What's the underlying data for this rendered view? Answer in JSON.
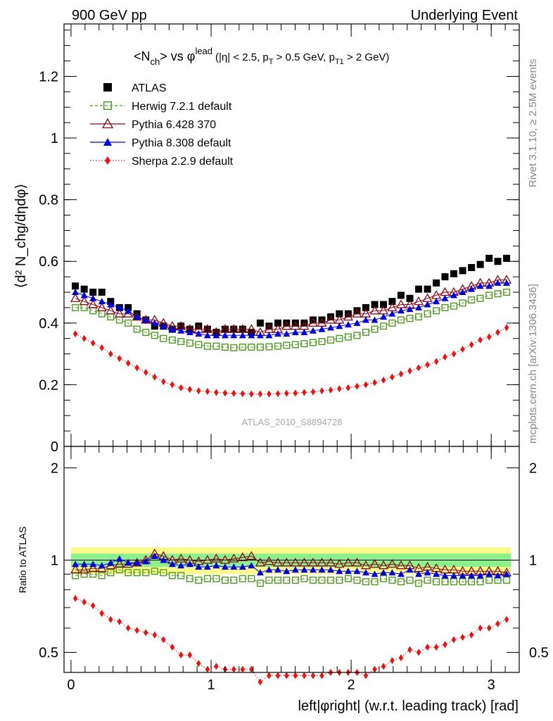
{
  "header": {
    "left_text": "900 GeV pp",
    "right_text": "Underlying Event"
  },
  "side_labels": {
    "rivet": "Rivet 3.1.10, ≥ 2.5M events",
    "mcplots": "mcplots.cern.ch [arXiv:1306.3436]"
  },
  "plot_title": {
    "main": "<N",
    "main_sub": "ch",
    "vs": "> vs φ",
    "vs_sup": "lead",
    "cuts": "(|η| < 2.5, p",
    "cuts_sub1": "T",
    "cuts_mid": " > 0.5 GeV, p",
    "cuts_sub2": "T1",
    "cuts_end": " > 2 GeV)"
  },
  "watermark": "ATLAS_2010_S8894728",
  "axes": {
    "ylabel_main": "⟨d² N_chg/dηdφ⟩",
    "ylabel_ratio": "Ratio to ATLAS",
    "xlabel": "left|φright| (w.r.t. leading track) [rad]",
    "main_yticks": [
      "0",
      "0.2",
      "0.4",
      "0.6",
      "0.8",
      "1",
      "1.2"
    ],
    "ratio_yticks": [
      "0.5",
      "1",
      "2"
    ],
    "xticks": [
      "0",
      "1",
      "2",
      "3"
    ]
  },
  "legend": [
    {
      "label": "ATLAS",
      "color": "#000000",
      "marker": "square-filled",
      "line": "none"
    },
    {
      "label": "Herwig 7.2.1 default",
      "color": "#4d9a1e",
      "marker": "square-open",
      "line": "dashed"
    },
    {
      "label": "Pythia 6.428 370",
      "color": "#8b0a1a",
      "marker": "triangle-open",
      "line": "solid"
    },
    {
      "label": "Pythia 8.308 default",
      "color": "#0000dd",
      "marker": "triangle-filled",
      "line": "solid"
    },
    {
      "label": "Sherpa 2.2.9 default",
      "color": "#ee1111",
      "marker": "diamond-filled",
      "line": "dotted"
    }
  ],
  "chart_data": [
    {
      "type": "scatter",
      "panel": "main",
      "xlim": [
        -0.05,
        3.2
      ],
      "ylim": [
        0,
        1.37
      ],
      "x": [
        0.031,
        0.094,
        0.157,
        0.22,
        0.283,
        0.346,
        0.408,
        0.471,
        0.534,
        0.597,
        0.66,
        0.723,
        0.785,
        0.848,
        0.911,
        0.974,
        1.037,
        1.1,
        1.162,
        1.225,
        1.288,
        1.351,
        1.414,
        1.477,
        1.539,
        1.602,
        1.665,
        1.728,
        1.791,
        1.854,
        1.916,
        1.979,
        2.042,
        2.105,
        2.168,
        2.231,
        2.293,
        2.356,
        2.419,
        2.482,
        2.545,
        2.608,
        2.67,
        2.733,
        2.796,
        2.859,
        2.922,
        2.985,
        3.047,
        3.11
      ],
      "series": [
        {
          "name": "ATLAS",
          "values": [
            0.52,
            0.51,
            0.5,
            0.5,
            0.47,
            0.45,
            0.45,
            0.43,
            0.41,
            0.39,
            0.39,
            0.38,
            0.39,
            0.38,
            0.39,
            0.38,
            0.37,
            0.38,
            0.38,
            0.38,
            0.37,
            0.4,
            0.39,
            0.4,
            0.4,
            0.4,
            0.4,
            0.41,
            0.41,
            0.42,
            0.43,
            0.43,
            0.44,
            0.45,
            0.46,
            0.46,
            0.47,
            0.49,
            0.48,
            0.51,
            0.51,
            0.53,
            0.55,
            0.56,
            0.57,
            0.58,
            0.59,
            0.61,
            0.6,
            0.61
          ]
        },
        {
          "name": "Herwig 7.2.1 default",
          "values": [
            0.45,
            0.45,
            0.44,
            0.43,
            0.42,
            0.41,
            0.4,
            0.38,
            0.37,
            0.36,
            0.35,
            0.345,
            0.34,
            0.335,
            0.33,
            0.325,
            0.325,
            0.322,
            0.32,
            0.322,
            0.322,
            0.322,
            0.323,
            0.325,
            0.328,
            0.33,
            0.333,
            0.337,
            0.34,
            0.345,
            0.35,
            0.355,
            0.36,
            0.37,
            0.38,
            0.39,
            0.4,
            0.41,
            0.415,
            0.42,
            0.43,
            0.44,
            0.45,
            0.455,
            0.465,
            0.475,
            0.48,
            0.49,
            0.495,
            0.5
          ]
        },
        {
          "name": "Pythia 6.428 370",
          "values": [
            0.48,
            0.47,
            0.46,
            0.45,
            0.44,
            0.43,
            0.43,
            0.42,
            0.41,
            0.41,
            0.4,
            0.39,
            0.39,
            0.38,
            0.38,
            0.38,
            0.37,
            0.38,
            0.38,
            0.38,
            0.38,
            0.37,
            0.38,
            0.38,
            0.39,
            0.39,
            0.39,
            0.4,
            0.4,
            0.41,
            0.41,
            0.42,
            0.43,
            0.43,
            0.44,
            0.44,
            0.45,
            0.46,
            0.46,
            0.47,
            0.48,
            0.49,
            0.5,
            0.5,
            0.51,
            0.52,
            0.53,
            0.53,
            0.54,
            0.54
          ]
        },
        {
          "name": "Pythia 8.308 default",
          "values": [
            0.5,
            0.49,
            0.48,
            0.47,
            0.46,
            0.45,
            0.44,
            0.42,
            0.41,
            0.4,
            0.39,
            0.38,
            0.375,
            0.37,
            0.365,
            0.36,
            0.36,
            0.36,
            0.36,
            0.36,
            0.36,
            0.36,
            0.36,
            0.365,
            0.365,
            0.37,
            0.37,
            0.375,
            0.38,
            0.385,
            0.39,
            0.395,
            0.4,
            0.41,
            0.41,
            0.42,
            0.43,
            0.44,
            0.445,
            0.45,
            0.46,
            0.47,
            0.48,
            0.49,
            0.5,
            0.51,
            0.52,
            0.52,
            0.53,
            0.53
          ]
        },
        {
          "name": "Sherpa 2.2.9 default",
          "values": [
            0.365,
            0.35,
            0.335,
            0.32,
            0.3,
            0.285,
            0.27,
            0.255,
            0.24,
            0.225,
            0.21,
            0.2,
            0.19,
            0.185,
            0.18,
            0.178,
            0.175,
            0.173,
            0.172,
            0.171,
            0.17,
            0.17,
            0.17,
            0.171,
            0.172,
            0.173,
            0.175,
            0.177,
            0.18,
            0.183,
            0.187,
            0.19,
            0.195,
            0.2,
            0.207,
            0.215,
            0.225,
            0.235,
            0.245,
            0.255,
            0.265,
            0.275,
            0.29,
            0.3,
            0.315,
            0.33,
            0.345,
            0.355,
            0.37,
            0.385
          ]
        }
      ]
    },
    {
      "type": "scatter",
      "panel": "ratio",
      "ylabel": "Ratio to ATLAS",
      "ylim": [
        0.43,
        2.35
      ],
      "log_scale_y": true,
      "band_inner": [
        0.95,
        1.05
      ],
      "band_outer": [
        0.9,
        1.1
      ],
      "x": [
        0.031,
        0.094,
        0.157,
        0.22,
        0.283,
        0.346,
        0.408,
        0.471,
        0.534,
        0.597,
        0.66,
        0.723,
        0.785,
        0.848,
        0.911,
        0.974,
        1.037,
        1.1,
        1.162,
        1.225,
        1.288,
        1.351,
        1.414,
        1.477,
        1.539,
        1.602,
        1.665,
        1.728,
        1.791,
        1.854,
        1.916,
        1.979,
        2.042,
        2.105,
        2.168,
        2.231,
        2.293,
        2.356,
        2.419,
        2.482,
        2.545,
        2.608,
        2.67,
        2.733,
        2.796,
        2.859,
        2.922,
        2.985,
        3.047,
        3.11
      ],
      "series": [
        {
          "name": "Herwig 7.2.1 default",
          "values": [
            0.89,
            0.9,
            0.9,
            0.89,
            0.91,
            0.93,
            0.91,
            0.91,
            0.91,
            0.92,
            0.91,
            0.89,
            0.89,
            0.87,
            0.86,
            0.87,
            0.87,
            0.86,
            0.86,
            0.87,
            0.87,
            0.84,
            0.86,
            0.86,
            0.86,
            0.86,
            0.87,
            0.86,
            0.86,
            0.86,
            0.86,
            0.87,
            0.86,
            0.85,
            0.85,
            0.87,
            0.86,
            0.85,
            0.86,
            0.84,
            0.86,
            0.85,
            0.85,
            0.85,
            0.85,
            0.85,
            0.85,
            0.86,
            0.86,
            0.86
          ]
        },
        {
          "name": "Pythia 6.428 370",
          "values": [
            0.93,
            0.93,
            0.94,
            0.94,
            0.96,
            0.97,
            0.97,
            0.98,
            1.0,
            1.05,
            1.03,
            1.0,
            1.01,
            1.0,
            0.99,
            1.0,
            1.01,
            1.0,
            1.01,
            1.02,
            1.03,
            0.98,
            0.99,
            0.98,
            0.98,
            0.98,
            0.98,
            0.98,
            0.98,
            0.98,
            0.97,
            0.98,
            0.98,
            0.96,
            0.97,
            0.96,
            0.97,
            0.96,
            0.96,
            0.94,
            0.95,
            0.94,
            0.93,
            0.93,
            0.92,
            0.92,
            0.92,
            0.92,
            0.92,
            0.91
          ]
        },
        {
          "name": "Pythia 8.308 default",
          "values": [
            0.97,
            0.97,
            0.97,
            0.96,
            0.98,
            1.01,
            0.98,
            0.98,
            0.99,
            1.03,
            1.0,
            0.97,
            0.96,
            0.97,
            0.95,
            0.95,
            0.96,
            0.95,
            0.95,
            0.95,
            0.96,
            0.91,
            0.93,
            0.93,
            0.92,
            0.93,
            0.93,
            0.93,
            0.93,
            0.93,
            0.92,
            0.92,
            0.92,
            0.91,
            0.9,
            0.91,
            0.91,
            0.9,
            0.93,
            0.9,
            0.91,
            0.9,
            0.89,
            0.89,
            0.89,
            0.89,
            0.89,
            0.9,
            0.89,
            0.9
          ]
        },
        {
          "name": "Sherpa 2.2.9 default",
          "values": [
            0.75,
            0.73,
            0.71,
            0.67,
            0.64,
            0.63,
            0.6,
            0.59,
            0.58,
            0.57,
            0.55,
            0.52,
            0.49,
            0.49,
            0.46,
            0.44,
            0.45,
            0.44,
            0.44,
            0.44,
            0.44,
            0.4,
            0.42,
            0.42,
            0.42,
            0.42,
            0.42,
            0.42,
            0.42,
            0.43,
            0.43,
            0.43,
            0.43,
            0.42,
            0.44,
            0.45,
            0.47,
            0.48,
            0.51,
            0.5,
            0.52,
            0.52,
            0.53,
            0.55,
            0.56,
            0.57,
            0.6,
            0.6,
            0.62,
            0.64
          ]
        }
      ]
    }
  ]
}
